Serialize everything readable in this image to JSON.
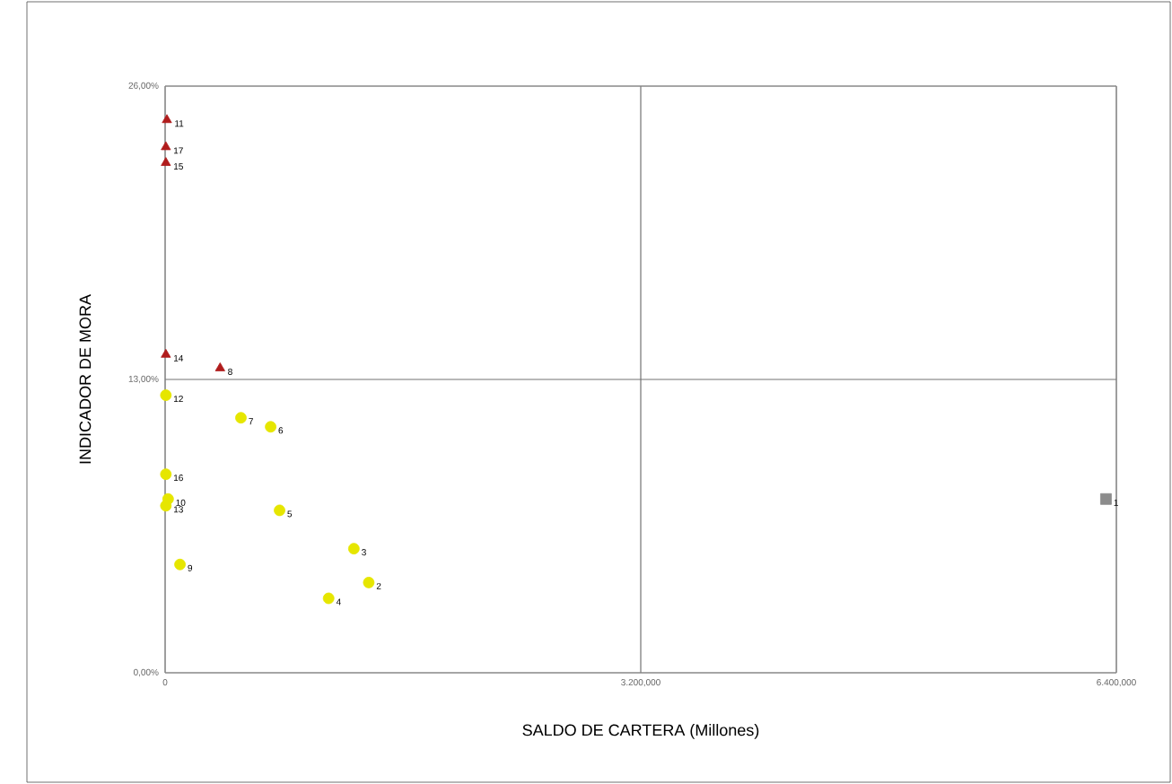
{
  "chart_data": {
    "type": "scatter",
    "xlabel": "SALDO DE CARTERA (Millones)",
    "ylabel": "INDICADOR DE MORA",
    "xlim": [
      0,
      6400
    ],
    "ylim": [
      0,
      26
    ],
    "xticks": [
      {
        "value": 0,
        "label": "0"
      },
      {
        "value": 3200,
        "label": "3.200,000"
      },
      {
        "value": 6400,
        "label": "6.400,000"
      }
    ],
    "yticks": [
      {
        "value": 0,
        "label": "0,00%"
      },
      {
        "value": 13,
        "label": "13,00%"
      },
      {
        "value": 26,
        "label": "26,00%"
      }
    ],
    "grid": true,
    "series": [
      {
        "color": "#b01c1c",
        "marker": "triangle",
        "x": [
          12,
          5,
          5,
          5,
          370
        ],
        "values": [
          24.5,
          23.3,
          22.6,
          14.1,
          13.5
        ]
      },
      {
        "color": "#e6e600",
        "marker": "circle",
        "x": [
          5,
          510,
          710,
          5,
          20,
          5,
          770,
          1270,
          100,
          1370,
          1100
        ],
        "values": [
          12.3,
          11.3,
          10.9,
          8.8,
          7.7,
          7.4,
          7.2,
          5.5,
          4.8,
          4.0,
          3.3
        ]
      },
      {
        "color": "#8c8c8c",
        "marker": "square",
        "x": [
          6330
        ],
        "values": [
          7.7
        ]
      }
    ],
    "annotations": [
      {
        "text": "11",
        "x": 12,
        "y": 24.5
      },
      {
        "text": "17",
        "x": 5,
        "y": 23.3
      },
      {
        "text": "15",
        "x": 5,
        "y": 22.6
      },
      {
        "text": "14",
        "x": 5,
        "y": 14.1
      },
      {
        "text": "8",
        "x": 370,
        "y": 13.5
      },
      {
        "text": "12",
        "x": 5,
        "y": 12.3
      },
      {
        "text": "7",
        "x": 510,
        "y": 11.3
      },
      {
        "text": "6",
        "x": 710,
        "y": 10.9
      },
      {
        "text": "16",
        "x": 5,
        "y": 8.8
      },
      {
        "text": "10",
        "x": 20,
        "y": 7.7
      },
      {
        "text": "13",
        "x": 5,
        "y": 7.4
      },
      {
        "text": "5",
        "x": 770,
        "y": 7.2
      },
      {
        "text": "3",
        "x": 1270,
        "y": 5.5
      },
      {
        "text": "9",
        "x": 100,
        "y": 4.8
      },
      {
        "text": "2",
        "x": 1370,
        "y": 4.0
      },
      {
        "text": "4",
        "x": 1100,
        "y": 3.3
      },
      {
        "text": "1",
        "x": 6330,
        "y": 7.7
      }
    ]
  }
}
